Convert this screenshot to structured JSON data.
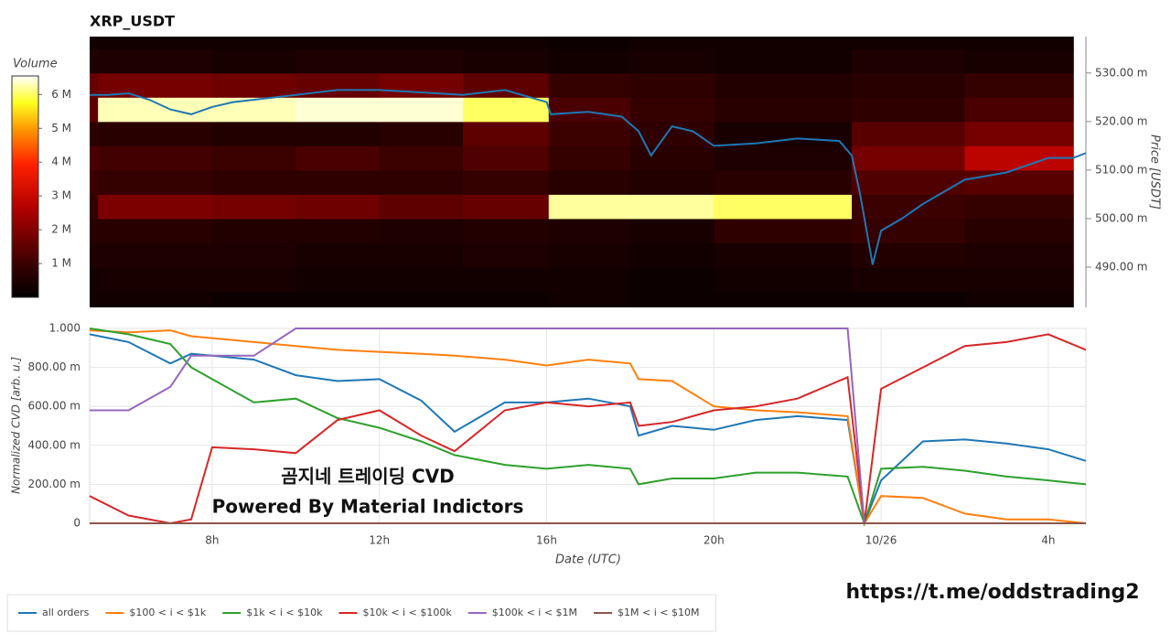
{
  "chart_data": [
    {
      "type": "heatmap",
      "title": "XRP_USDT",
      "y_label": "Price [USDT]",
      "xlim": [
        5.07,
        28.9
      ],
      "ylim": [
        0.4817,
        0.5375
      ],
      "yticks": [
        {
          "value": 0.49,
          "label": "490.00 m"
        },
        {
          "value": 0.5,
          "label": "500.00 m"
        },
        {
          "value": 0.51,
          "label": "510.00 m"
        },
        {
          "value": 0.52,
          "label": "520.00 m"
        },
        {
          "value": 0.53,
          "label": "530.00 m"
        }
      ],
      "x_bins": [
        5.07,
        5.27,
        8,
        10,
        12,
        14,
        16.05,
        18,
        20,
        23.3,
        26,
        28.6
      ],
      "y_bins": [
        0.48,
        0.485,
        0.49,
        0.495,
        0.5,
        0.505,
        0.51,
        0.515,
        0.52,
        0.525,
        0.53,
        0.535,
        0.54
      ],
      "z": [
        [
          300000,
          300000,
          200000,
          200000,
          200000,
          200000,
          300000,
          200000,
          200000,
          200000,
          300000
        ],
        [
          300000,
          400000,
          400000,
          300000,
          300000,
          300000,
          300000,
          200000,
          300000,
          400000,
          400000
        ],
        [
          500000,
          500000,
          500000,
          400000,
          400000,
          500000,
          400000,
          300000,
          400000,
          600000,
          500000
        ],
        [
          700000,
          700000,
          600000,
          600000,
          500000,
          600000,
          500000,
          400000,
          800000,
          900000,
          700000
        ],
        [
          900000,
          1900000,
          1800000,
          1700000,
          1500000,
          1600000,
          6200000,
          6200000,
          6000000,
          1000000,
          900000
        ],
        [
          1000000,
          900000,
          800000,
          800000,
          800000,
          900000,
          700000,
          600000,
          700000,
          1300000,
          1400000
        ],
        [
          1200000,
          1100000,
          1000000,
          1200000,
          1000000,
          1300000,
          900000,
          700000,
          500000,
          1800000,
          2800000
        ],
        [
          800000,
          700000,
          600000,
          600000,
          700000,
          1500000,
          1000000,
          800000,
          400000,
          1400000,
          1800000
        ],
        [
          1500000,
          6300000,
          6300000,
          6400000,
          6400000,
          6000000,
          1200000,
          900000,
          700000,
          800000,
          1200000
        ],
        [
          1600000,
          1800000,
          1700000,
          1600000,
          1800000,
          1500000,
          900000,
          800000,
          600000,
          700000,
          900000
        ],
        [
          600000,
          500000,
          400000,
          500000,
          500000,
          400000,
          300000,
          400000,
          300000,
          500000,
          400000
        ],
        [
          300000,
          300000,
          300000,
          300000,
          300000,
          300000,
          200000,
          300000,
          300000,
          300000,
          300000
        ]
      ],
      "colorbar": {
        "label": "Volume",
        "lim": [
          0,
          6550000
        ],
        "ticks": [
          {
            "value": 1000000,
            "label": "1 M"
          },
          {
            "value": 2000000,
            "label": "2 M"
          },
          {
            "value": 3000000,
            "label": "3 M"
          },
          {
            "value": 4000000,
            "label": "4 M"
          },
          {
            "value": 5000000,
            "label": "5 M"
          },
          {
            "value": 6000000,
            "label": "6 M"
          }
        ],
        "colorscale": [
          [
            0,
            "#000000"
          ],
          [
            0.15,
            "#3a0000"
          ],
          [
            0.4,
            "#b00000"
          ],
          [
            0.6,
            "#ff2000"
          ],
          [
            0.75,
            "#ff9000"
          ],
          [
            0.88,
            "#ffff20"
          ],
          [
            1,
            "#ffffff"
          ]
        ]
      },
      "price": {
        "color": "#1f77b4",
        "x": [
          5.07,
          5.5,
          6,
          6.5,
          7,
          7.5,
          8,
          8.5,
          9,
          10,
          11,
          12,
          13,
          14,
          15,
          16,
          16.1,
          17,
          17.8,
          18.2,
          18.5,
          19,
          19.5,
          20,
          21,
          22,
          23,
          23.3,
          23.5,
          23.8,
          24,
          24.5,
          25,
          26,
          27,
          28,
          28.6,
          28.9
        ],
        "values": [
          0.5255,
          0.5255,
          0.5258,
          0.5245,
          0.5225,
          0.5215,
          0.523,
          0.524,
          0.5245,
          0.5255,
          0.5265,
          0.5265,
          0.526,
          0.5255,
          0.5265,
          0.524,
          0.5215,
          0.522,
          0.521,
          0.518,
          0.513,
          0.519,
          0.518,
          0.515,
          0.5155,
          0.5165,
          0.516,
          0.513,
          0.505,
          0.4905,
          0.4975,
          0.5,
          0.503,
          0.508,
          0.5095,
          0.5125,
          0.5125,
          0.5135
        ]
      }
    },
    {
      "type": "line",
      "x_label": "Date (UTC)",
      "y_label": "Normalized CVD [arb. u.]",
      "xlim": [
        5.07,
        28.9
      ],
      "ylim": [
        0,
        1
      ],
      "xticks": [
        {
          "value": 8,
          "label": "8h"
        },
        {
          "value": 12,
          "label": "12h"
        },
        {
          "value": 16,
          "label": "16h"
        },
        {
          "value": 20,
          "label": "20h"
        },
        {
          "value": 24,
          "label": "10/26"
        },
        {
          "value": 28,
          "label": "4h"
        }
      ],
      "yticks": [
        0,
        {
          "value": 0.2,
          "label": "200.00 m"
        },
        {
          "value": 0.4,
          "label": "400.00 m"
        },
        {
          "value": 0.6,
          "label": "600.00 m"
        },
        {
          "value": 0.8,
          "label": "800.00 m"
        },
        {
          "value": 1,
          "label": "1.000"
        }
      ],
      "grid": true,
      "x": [
        5.07,
        6,
        7,
        7.5,
        8,
        9,
        10,
        11,
        12,
        13,
        13.8,
        15,
        16,
        17,
        18,
        18.2,
        19,
        20,
        21,
        22,
        23.2,
        23.6,
        24,
        25,
        26,
        27,
        28,
        28.9
      ],
      "series": [
        {
          "name": "all orders",
          "color": "#1f77b4",
          "values": [
            0.97,
            0.93,
            0.82,
            0.87,
            0.86,
            0.84,
            0.76,
            0.73,
            0.74,
            0.63,
            0.47,
            0.62,
            0.62,
            0.64,
            0.6,
            0.45,
            0.5,
            0.48,
            0.53,
            0.55,
            0.53,
            0,
            0.22,
            0.42,
            0.43,
            0.41,
            0.38,
            0.32
          ]
        },
        {
          "name": "$100 < i < $1k",
          "color": "#ff7f0e",
          "values": [
            0.99,
            0.98,
            0.99,
            0.96,
            0.95,
            0.93,
            0.91,
            0.89,
            0.88,
            0.87,
            0.86,
            0.84,
            0.81,
            0.84,
            0.82,
            0.74,
            0.73,
            0.6,
            0.58,
            0.57,
            0.55,
            0,
            0.14,
            0.13,
            0.05,
            0.02,
            0.02,
            0
          ]
        },
        {
          "name": "$1k < i < $10k",
          "color": "#2ca02c",
          "values": [
            1,
            0.97,
            0.92,
            0.8,
            0.74,
            0.62,
            0.64,
            0.54,
            0.49,
            0.42,
            0.35,
            0.3,
            0.28,
            0.3,
            0.28,
            0.2,
            0.23,
            0.23,
            0.26,
            0.26,
            0.24,
            0,
            0.28,
            0.29,
            0.27,
            0.24,
            0.22,
            0.2
          ]
        },
        {
          "name": "$10k < i < $100k",
          "color": "#d62728",
          "values": [
            0.14,
            0.04,
            0,
            0.02,
            0.39,
            0.38,
            0.36,
            0.53,
            0.58,
            0.45,
            0.37,
            0.58,
            0.62,
            0.6,
            0.62,
            0.5,
            0.52,
            0.58,
            0.6,
            0.64,
            0.75,
            0,
            0.69,
            0.8,
            0.91,
            0.93,
            0.97,
            0.89
          ]
        },
        {
          "name": "$100k < i < $1M",
          "color": "#9467bd",
          "values": [
            0.58,
            0.58,
            0.7,
            0.86,
            0.86,
            0.86,
            1,
            1,
            1,
            1,
            1,
            1,
            1,
            1,
            1,
            1,
            1,
            1,
            1,
            1,
            1,
            0,
            0,
            0,
            0,
            0,
            0,
            0
          ]
        },
        {
          "name": "$1M < i < $10M",
          "color": "#8c564b",
          "values": [
            0,
            0,
            0,
            0,
            0,
            0,
            0,
            0,
            0,
            0,
            0,
            0,
            0,
            0,
            0,
            0,
            0,
            0,
            0,
            0,
            0,
            0,
            0,
            0,
            0,
            0,
            0,
            0
          ]
        }
      ],
      "annotations": [
        "곰지네 트레이딩 CVD",
        "Powered By Material Indictors"
      ]
    }
  ],
  "caption": "https://t.me/oddstrading2"
}
